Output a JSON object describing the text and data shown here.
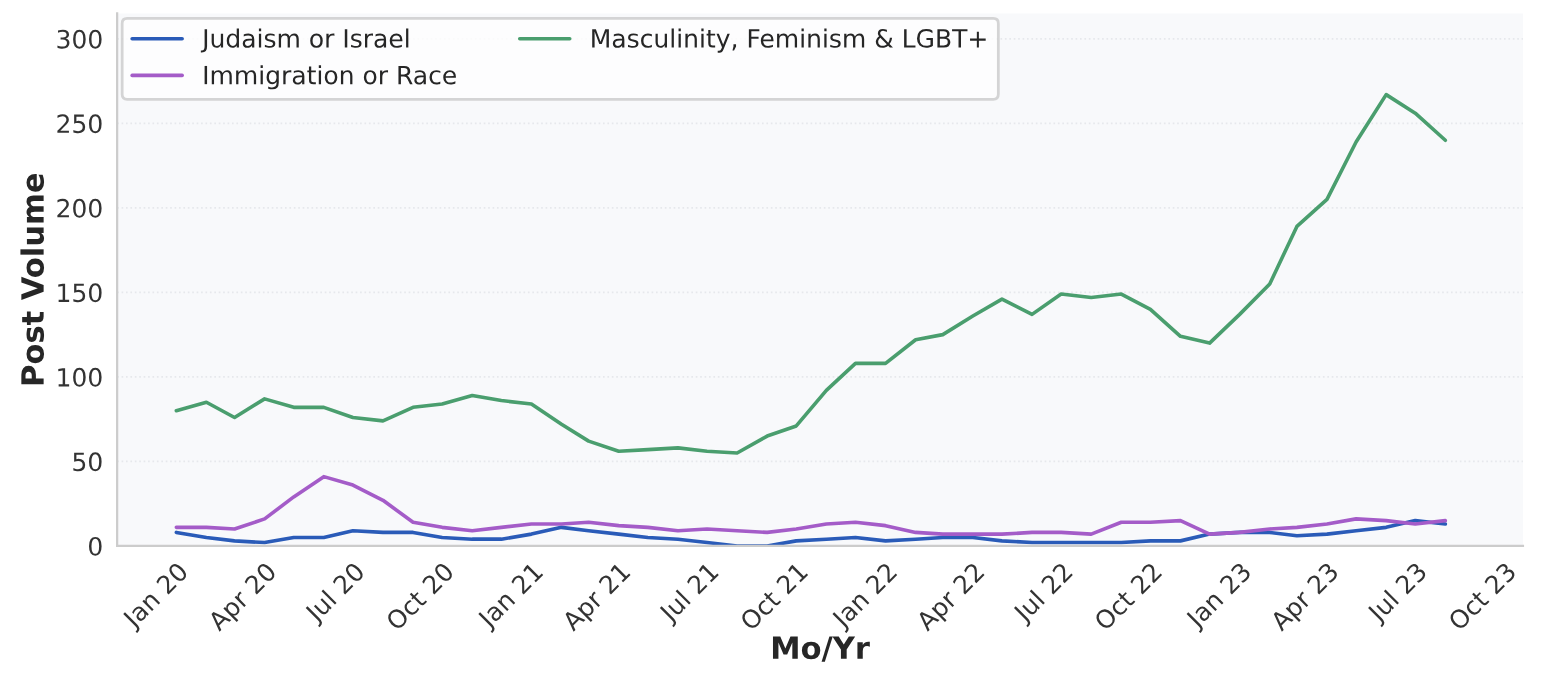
{
  "chart_data": {
    "type": "line",
    "xlabel": "Mo/Yr",
    "ylabel": "Post Volume",
    "x": [
      "2020-01",
      "2020-02",
      "2020-03",
      "2020-04",
      "2020-05",
      "2020-06",
      "2020-07",
      "2020-08",
      "2020-09",
      "2020-10",
      "2020-11",
      "2020-12",
      "2021-01",
      "2021-02",
      "2021-03",
      "2021-04",
      "2021-05",
      "2021-06",
      "2021-07",
      "2021-08",
      "2021-09",
      "2021-10",
      "2021-11",
      "2021-12",
      "2022-01",
      "2022-02",
      "2022-03",
      "2022-04",
      "2022-05",
      "2022-06",
      "2022-07",
      "2022-08",
      "2022-09",
      "2022-10",
      "2022-11",
      "2022-12",
      "2023-01",
      "2023-02",
      "2023-03",
      "2023-04",
      "2023-05",
      "2023-06",
      "2023-07",
      "2023-08"
    ],
    "series": [
      {
        "name": "Judaism or Israel",
        "color": "#2a5bb8",
        "values": [
          8,
          5,
          3,
          2,
          5,
          5,
          9,
          8,
          8,
          5,
          4,
          4,
          7,
          11,
          9,
          7,
          5,
          4,
          2,
          0,
          0,
          3,
          4,
          5,
          3,
          4,
          5,
          5,
          3,
          2,
          2,
          2,
          2,
          3,
          3,
          7,
          8,
          8,
          6,
          7,
          9,
          11,
          15,
          13
        ]
      },
      {
        "name": "Immigration or Race",
        "color": "#a45cc8",
        "values": [
          11,
          11,
          10,
          16,
          29,
          41,
          36,
          27,
          14,
          11,
          9,
          11,
          13,
          13,
          14,
          12,
          11,
          9,
          10,
          9,
          8,
          10,
          13,
          14,
          12,
          8,
          7,
          7,
          7,
          8,
          8,
          7,
          14,
          14,
          15,
          7,
          8,
          10,
          11,
          13,
          16,
          15,
          13,
          15
        ]
      },
      {
        "name": "Masculinity, Feminism & LGBT+",
        "color": "#4a9e6e",
        "values": [
          80,
          85,
          76,
          87,
          82,
          82,
          76,
          74,
          82,
          84,
          89,
          86,
          84,
          72,
          62,
          56,
          57,
          58,
          56,
          55,
          65,
          71,
          92,
          108,
          108,
          122,
          125,
          136,
          146,
          137,
          149,
          147,
          149,
          140,
          124,
          120,
          137,
          155,
          189,
          205,
          239,
          267,
          256,
          240
        ]
      }
    ],
    "xlim": [
      "2019-11-01",
      "2023-10-20"
    ],
    "xticks": [
      {
        "value": "2020-01",
        "label": "Jan 20"
      },
      {
        "value": "2020-04",
        "label": "Apr 20"
      },
      {
        "value": "2020-07",
        "label": "Jul 20"
      },
      {
        "value": "2020-10",
        "label": "Oct 20"
      },
      {
        "value": "2021-01",
        "label": "Jan 21"
      },
      {
        "value": "2021-04",
        "label": "Apr 21"
      },
      {
        "value": "2021-07",
        "label": "Jul 21"
      },
      {
        "value": "2021-10",
        "label": "Oct 21"
      },
      {
        "value": "2022-01",
        "label": "Jan 22"
      },
      {
        "value": "2022-04",
        "label": "Apr 22"
      },
      {
        "value": "2022-07",
        "label": "Jul 22"
      },
      {
        "value": "2022-10",
        "label": "Oct 22"
      },
      {
        "value": "2023-01",
        "label": "Jan 23"
      },
      {
        "value": "2023-04",
        "label": "Apr 23"
      },
      {
        "value": "2023-07",
        "label": "Jul 23"
      },
      {
        "value": "2023-10",
        "label": "Oct 23"
      }
    ],
    "ylim": [
      0,
      315
    ],
    "yticks": [
      0,
      50,
      100,
      150,
      200,
      250,
      300
    ],
    "grid": "y",
    "legend": "top left",
    "line_style": "solid",
    "marker": "none"
  }
}
